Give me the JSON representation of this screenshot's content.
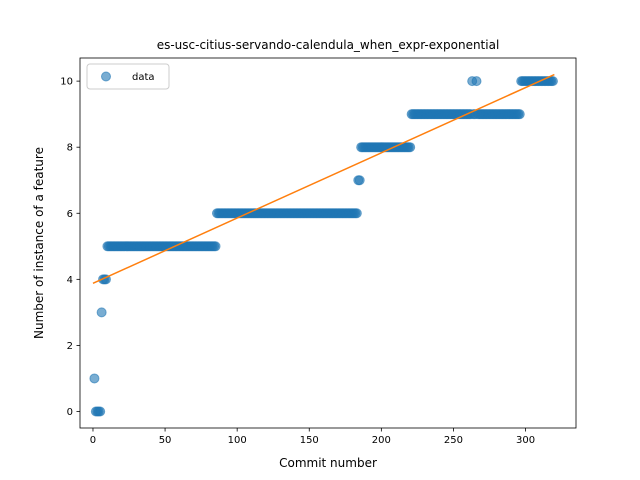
{
  "chart_data": {
    "type": "scatter",
    "title": "es-usc-citius-servando-calendula_when_expr-exponential",
    "xlabel": "Commit number",
    "ylabel": "Number of instance of a feature",
    "xlim": [
      -9,
      335
    ],
    "ylim": [
      -0.5,
      10.7
    ],
    "xticks": [
      0,
      50,
      100,
      150,
      200,
      250,
      300
    ],
    "yticks": [
      0,
      2,
      4,
      6,
      8,
      10
    ],
    "grid": false,
    "legend": {
      "placement": "top-left",
      "entries": [
        "data"
      ]
    },
    "colors": {
      "data": "#1f77b4",
      "fit": "#ff7f0e"
    },
    "series": [
      {
        "name": "data",
        "kind": "scatter",
        "segments": [
          {
            "x_start": 1,
            "x_end": 1,
            "y": 1
          },
          {
            "x_start": 2,
            "x_end": 5,
            "y": 0
          },
          {
            "x_start": 6,
            "x_end": 6,
            "y": 3
          },
          {
            "x_start": 7,
            "x_end": 9,
            "y": 4
          },
          {
            "x_start": 10,
            "x_end": 85,
            "y": 5
          },
          {
            "x_start": 86,
            "x_end": 183,
            "y": 6
          },
          {
            "x_start": 184,
            "x_end": 185,
            "y": 7
          },
          {
            "x_start": 186,
            "x_end": 220,
            "y": 8
          },
          {
            "x_start": 221,
            "x_end": 262,
            "y": 9
          },
          {
            "x_start": 263,
            "x_end": 263,
            "y": 10
          },
          {
            "x_start": 264,
            "x_end": 265,
            "y": 9
          },
          {
            "x_start": 266,
            "x_end": 266,
            "y": 10
          },
          {
            "x_start": 267,
            "x_end": 296,
            "y": 9
          },
          {
            "x_start": 297,
            "x_end": 319,
            "y": 10
          }
        ]
      },
      {
        "kind": "line",
        "x": [
          0,
          320
        ],
        "y": [
          3.88,
          10.2
        ]
      }
    ]
  }
}
